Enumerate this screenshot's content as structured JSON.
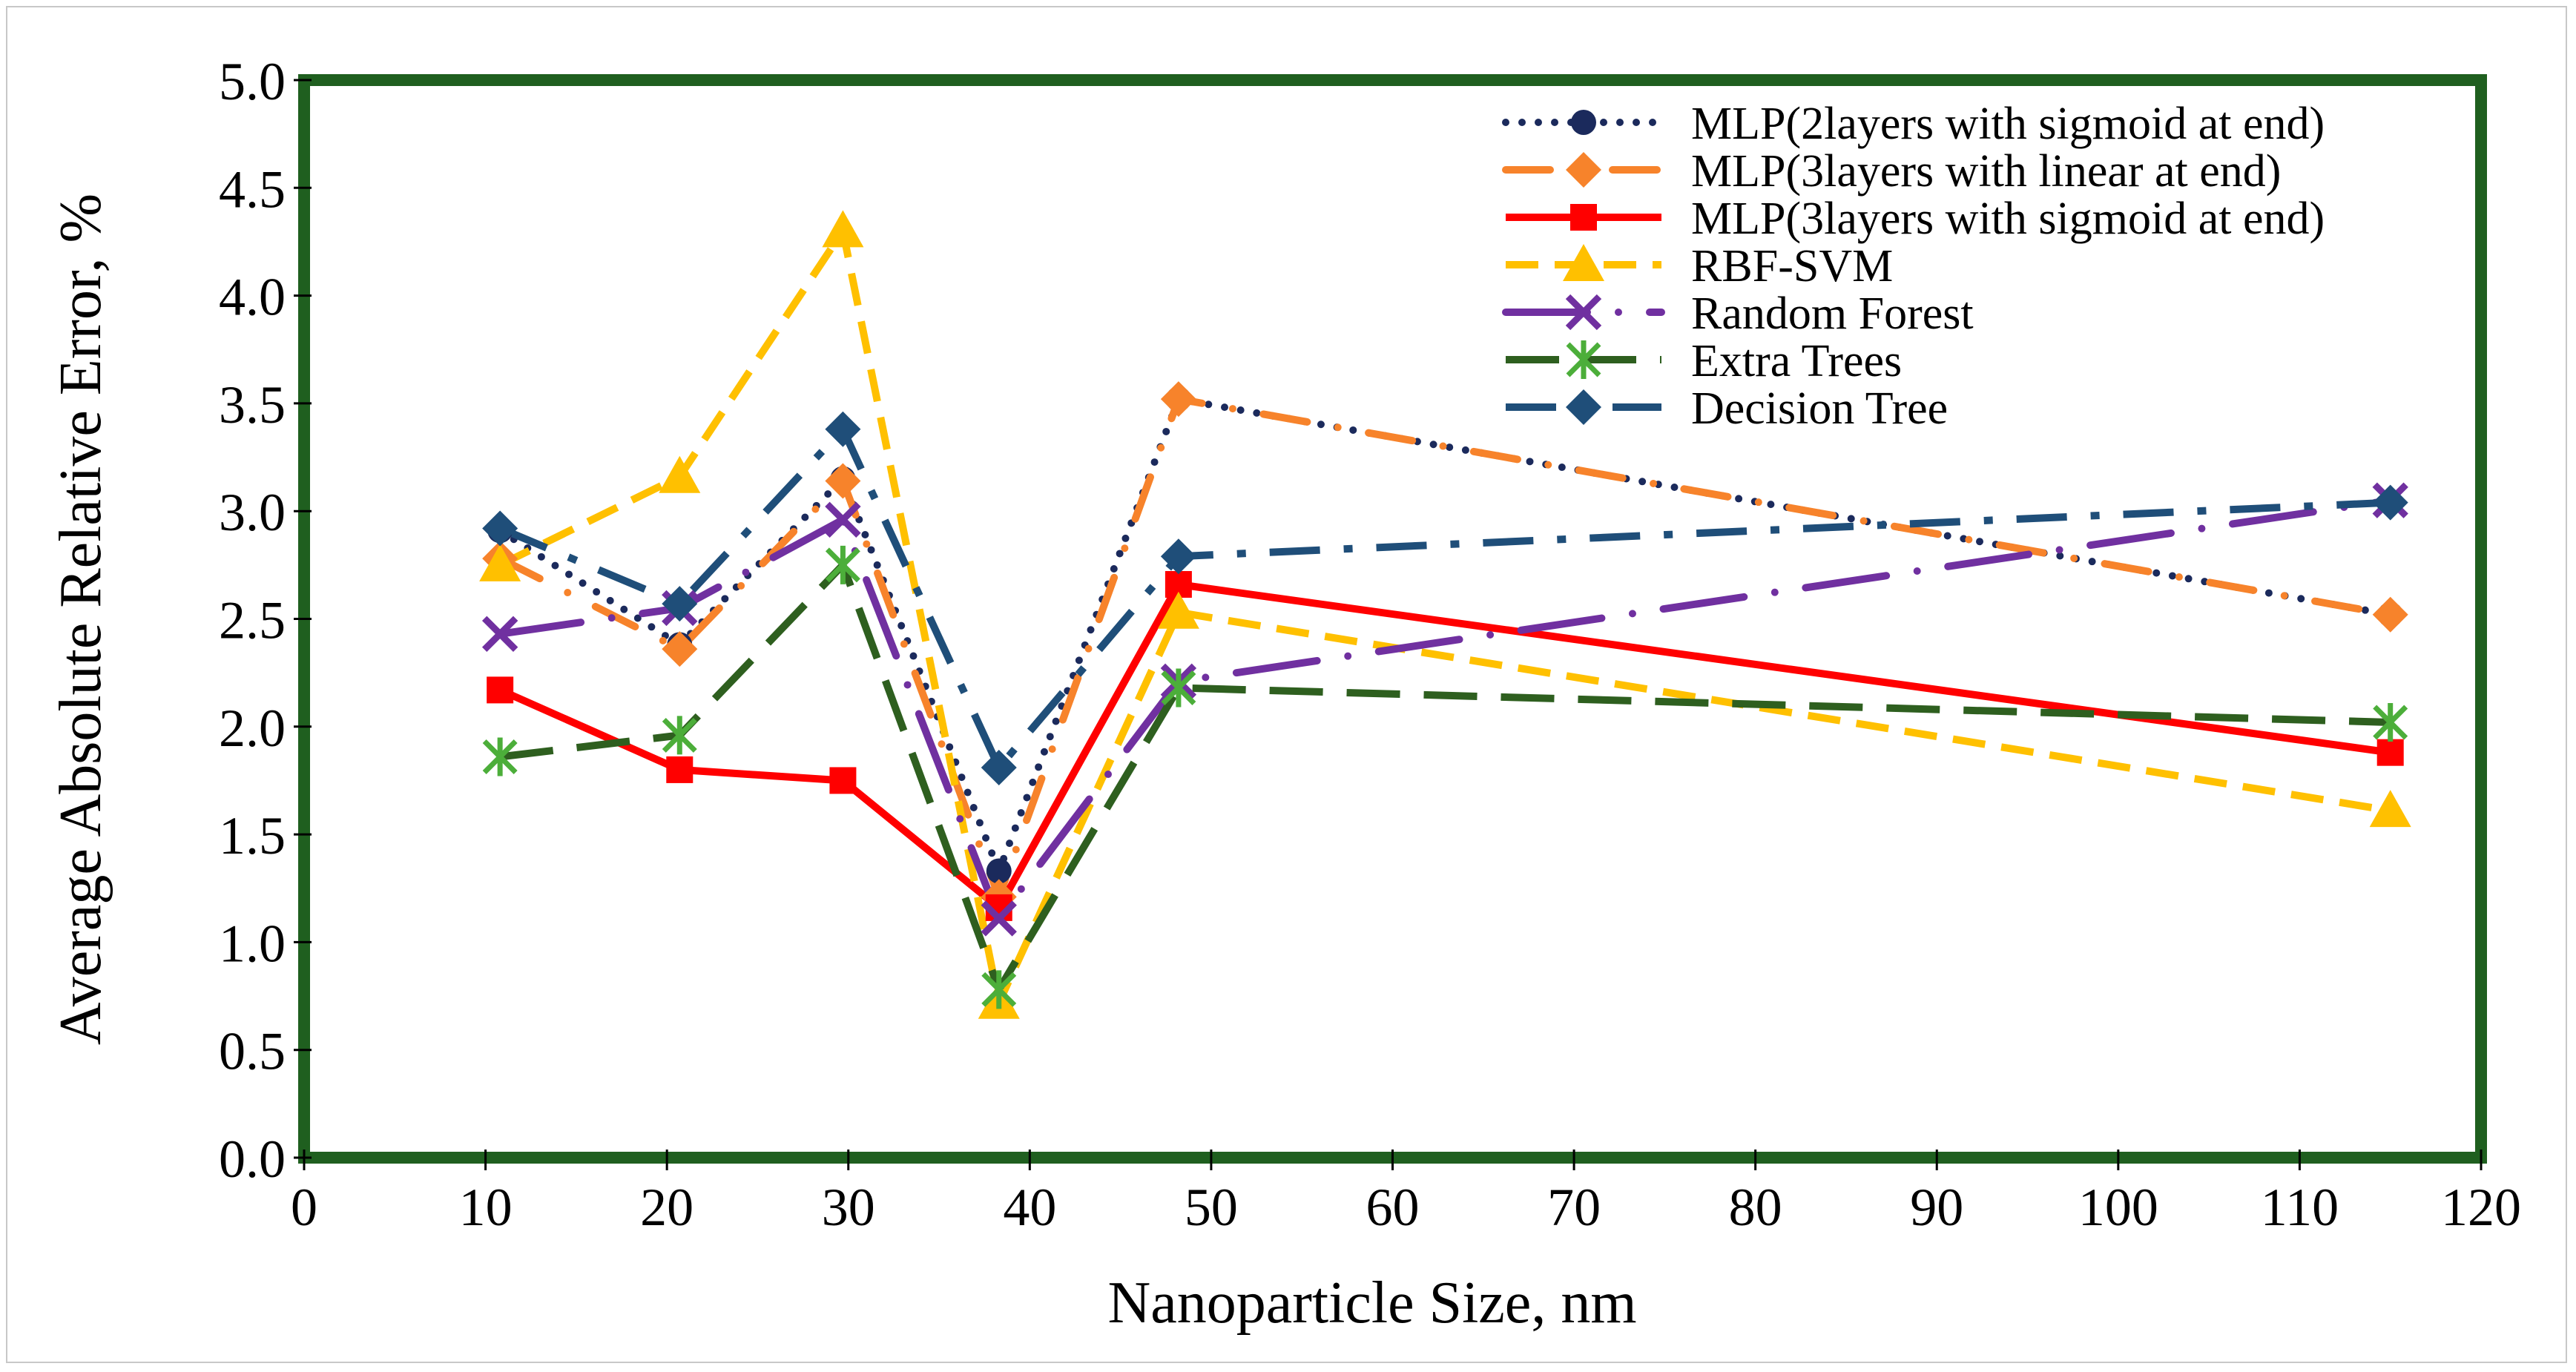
{
  "chart_data": {
    "type": "line",
    "title": "",
    "xlabel": "Nanoparticle Size, nm",
    "ylabel": "Average Absolute Relative Error, %",
    "xlim": [
      0,
      120
    ],
    "ylim": [
      0,
      5
    ],
    "x_ticks": [
      "0",
      "10",
      "20",
      "30",
      "40",
      "50",
      "60",
      "70",
      "80",
      "90",
      "100",
      "110",
      "120"
    ],
    "y_ticks": [
      "0.0",
      "0.5",
      "1.0",
      "1.5",
      "2.0",
      "2.5",
      "3.0",
      "3.5",
      "4.0",
      "4.5",
      "5.0"
    ],
    "x": [
      10.8,
      20.7,
      29.7,
      38.3,
      48.2,
      115
    ],
    "legend_position": "top-right",
    "plot_border_color": "#1f5f1f",
    "series": [
      {
        "name": "MLP(2layers with sigmoid at end)",
        "color": "#1b2a5c",
        "dash": "dot",
        "marker": "circle",
        "values": [
          2.91,
          2.38,
          3.15,
          1.33,
          3.52,
          2.52
        ]
      },
      {
        "name": "MLP(3layers with linear at end)",
        "color": "#f7832b",
        "dash": "longdot",
        "marker": "diamond",
        "values": [
          2.78,
          2.36,
          3.14,
          1.21,
          3.52,
          2.52
        ]
      },
      {
        "name": "MLP(3layers with sigmoid at end)",
        "color": "#ff0000",
        "dash": "solid",
        "marker": "square",
        "values": [
          2.17,
          1.8,
          1.75,
          1.16,
          2.66,
          1.88
        ]
      },
      {
        "name": "RBF-SVM",
        "color": "#ffc000",
        "dash": "dash",
        "marker": "triangle",
        "values": [
          2.75,
          3.16,
          4.3,
          0.72,
          2.53,
          1.61
        ]
      },
      {
        "name": "Random Forest",
        "color": "#7030a0",
        "dash": "longdashdot",
        "marker": "x",
        "values": [
          2.43,
          2.55,
          2.96,
          1.11,
          2.21,
          3.05
        ]
      },
      {
        "name": "Extra Trees",
        "color": "#2e5f1f",
        "dash": "longdash",
        "marker": "star",
        "values": [
          1.86,
          1.96,
          2.75,
          0.78,
          2.18,
          2.02
        ]
      },
      {
        "name": "Decision Tree",
        "color": "#1f4e79",
        "dash": "dashdot",
        "marker": "diamond",
        "values": [
          2.92,
          2.57,
          3.38,
          1.81,
          2.79,
          3.04
        ]
      }
    ]
  }
}
